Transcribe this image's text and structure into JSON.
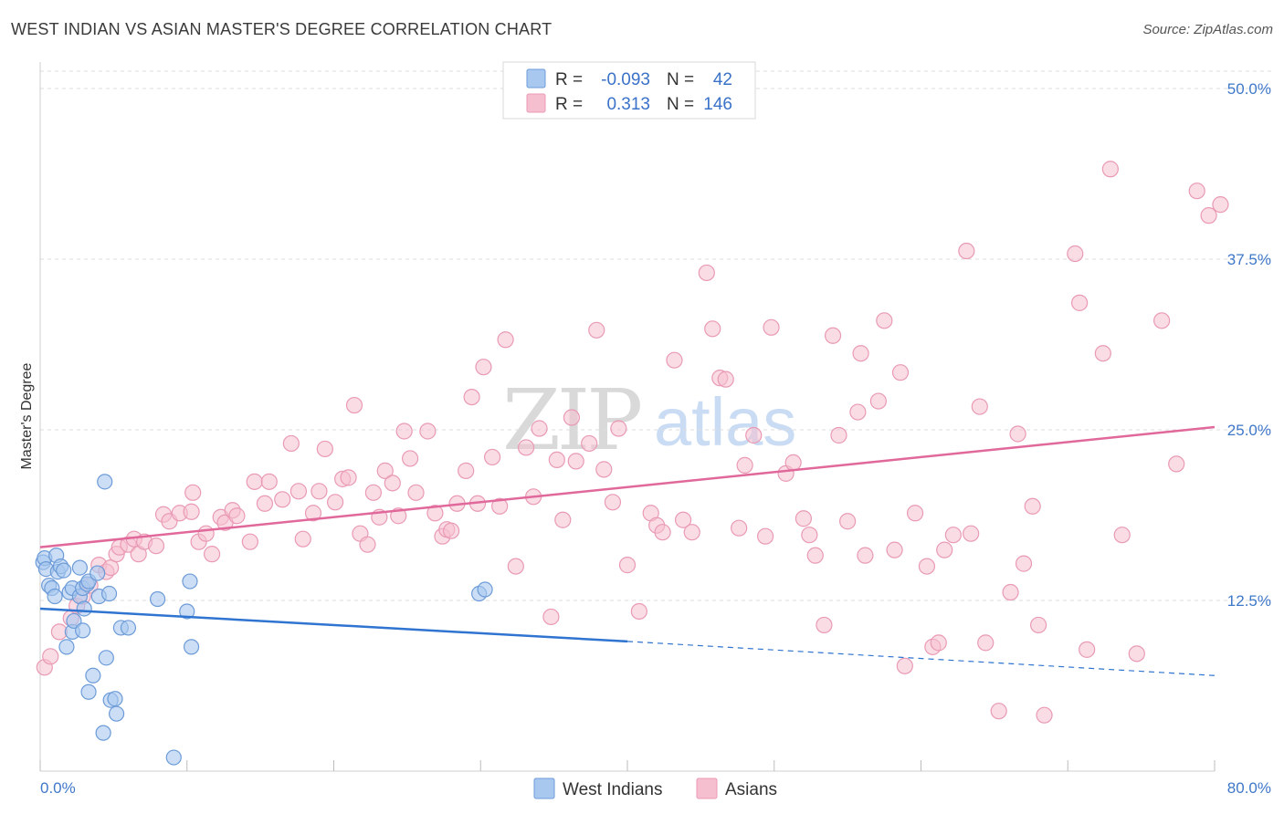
{
  "title": "WEST INDIAN VS ASIAN MASTER'S DEGREE CORRELATION CHART",
  "source": "Source: ZipAtlas.com",
  "watermark": {
    "part1": "ZIP",
    "part2": "atlas"
  },
  "colors": {
    "blue_fill": "#a9c8ef",
    "blue_stroke": "#6c9bd8",
    "blue_line": "#2f74d0",
    "pink_fill": "#f6bfd0",
    "pink_stroke": "#e99ab4",
    "pink_line": "#e0689a",
    "grid": "#dddddd",
    "tick_label": "#3f78c9"
  },
  "legend_top": {
    "rows": [
      {
        "r_label": "R =",
        "r_value": "-0.093",
        "n_label": "N =",
        "n_value": "42"
      },
      {
        "r_label": "R =",
        "r_value": "0.313",
        "n_label": "N =",
        "n_value": "146"
      }
    ]
  },
  "legend_bottom": {
    "items": [
      "West Indians",
      "Asians"
    ]
  },
  "chart_data": {
    "type": "scatter",
    "title": "WEST INDIAN VS ASIAN MASTER'S DEGREE CORRELATION CHART",
    "xlabel": "",
    "ylabel": "Master's Degree",
    "xlim": [
      0,
      80
    ],
    "ylim": [
      0,
      52
    ],
    "x_tick_labels": [
      {
        "value": 0,
        "label": "0.0%"
      },
      {
        "value": 80,
        "label": "80.0%"
      }
    ],
    "y_ticks": [
      {
        "value": 12.5,
        "label": "12.5%"
      },
      {
        "value": 25.0,
        "label": "25.0%"
      },
      {
        "value": 37.5,
        "label": "37.5%"
      },
      {
        "value": 50.0,
        "label": "50.0%"
      }
    ],
    "series": [
      {
        "name": "West Indians",
        "r": -0.093,
        "n": 42,
        "trend": {
          "x0": 0,
          "y0": 11.9,
          "x1": 40,
          "y1": 9.5,
          "dash_to_x": 80,
          "dash_to_y": 7.0
        },
        "points": [
          [
            0.2,
            15.3
          ],
          [
            0.3,
            15.6
          ],
          [
            0.4,
            14.8
          ],
          [
            0.6,
            13.6
          ],
          [
            0.8,
            13.4
          ],
          [
            1.0,
            12.8
          ],
          [
            1.1,
            15.8
          ],
          [
            1.2,
            14.6
          ],
          [
            1.4,
            15.0
          ],
          [
            1.6,
            14.7
          ],
          [
            1.8,
            9.1
          ],
          [
            2.0,
            13.1
          ],
          [
            2.2,
            13.4
          ],
          [
            2.2,
            10.2
          ],
          [
            2.3,
            11.0
          ],
          [
            2.7,
            14.9
          ],
          [
            2.7,
            12.8
          ],
          [
            2.9,
            13.4
          ],
          [
            2.9,
            10.3
          ],
          [
            3.0,
            11.9
          ],
          [
            3.2,
            13.7
          ],
          [
            3.3,
            13.9
          ],
          [
            3.3,
            5.8
          ],
          [
            3.6,
            7.0
          ],
          [
            3.9,
            14.5
          ],
          [
            4.0,
            12.8
          ],
          [
            4.3,
            2.8
          ],
          [
            4.5,
            8.3
          ],
          [
            4.7,
            13.0
          ],
          [
            4.8,
            5.2
          ],
          [
            5.1,
            5.3
          ],
          [
            5.2,
            4.2
          ],
          [
            4.4,
            21.2
          ],
          [
            5.5,
            10.5
          ],
          [
            6.0,
            10.5
          ],
          [
            8.0,
            12.6
          ],
          [
            9.1,
            1.0
          ],
          [
            10.0,
            11.7
          ],
          [
            10.2,
            13.9
          ],
          [
            10.3,
            9.1
          ],
          [
            29.9,
            13.0
          ],
          [
            30.3,
            13.3
          ]
        ]
      },
      {
        "name": "Asians",
        "r": 0.313,
        "n": 146,
        "trend": {
          "x0": 0,
          "y0": 16.4,
          "x1": 80,
          "y1": 25.2
        },
        "points": [
          [
            0.3,
            7.6
          ],
          [
            0.7,
            8.4
          ],
          [
            1.3,
            10.2
          ],
          [
            2.1,
            11.2
          ],
          [
            2.5,
            12.1
          ],
          [
            2.9,
            12.8
          ],
          [
            3.4,
            13.6
          ],
          [
            4.0,
            15.1
          ],
          [
            4.5,
            14.6
          ],
          [
            4.8,
            14.9
          ],
          [
            5.2,
            15.9
          ],
          [
            5.4,
            16.4
          ],
          [
            6.0,
            16.6
          ],
          [
            6.4,
            17.0
          ],
          [
            6.7,
            15.9
          ],
          [
            7.1,
            16.8
          ],
          [
            7.9,
            16.5
          ],
          [
            8.4,
            18.8
          ],
          [
            8.8,
            18.3
          ],
          [
            9.5,
            18.9
          ],
          [
            10.3,
            19.0
          ],
          [
            10.4,
            20.4
          ],
          [
            10.8,
            16.8
          ],
          [
            11.3,
            17.4
          ],
          [
            11.7,
            15.9
          ],
          [
            12.3,
            18.6
          ],
          [
            12.6,
            18.2
          ],
          [
            13.1,
            19.1
          ],
          [
            13.4,
            18.7
          ],
          [
            14.3,
            16.8
          ],
          [
            14.6,
            21.2
          ],
          [
            15.3,
            19.6
          ],
          [
            15.6,
            21.2
          ],
          [
            16.5,
            19.9
          ],
          [
            17.1,
            24.0
          ],
          [
            17.6,
            20.5
          ],
          [
            17.9,
            17.0
          ],
          [
            18.6,
            18.9
          ],
          [
            19.0,
            20.5
          ],
          [
            19.4,
            23.6
          ],
          [
            20.1,
            19.7
          ],
          [
            20.6,
            21.4
          ],
          [
            21.0,
            21.5
          ],
          [
            21.4,
            26.8
          ],
          [
            21.8,
            17.4
          ],
          [
            22.3,
            16.6
          ],
          [
            22.7,
            20.4
          ],
          [
            23.1,
            18.6
          ],
          [
            23.5,
            22.0
          ],
          [
            24.0,
            21.1
          ],
          [
            24.4,
            18.7
          ],
          [
            24.8,
            24.9
          ],
          [
            25.2,
            22.9
          ],
          [
            25.6,
            20.4
          ],
          [
            26.4,
            24.9
          ],
          [
            26.9,
            18.9
          ],
          [
            27.4,
            17.2
          ],
          [
            27.7,
            17.7
          ],
          [
            28.0,
            17.6
          ],
          [
            28.4,
            19.6
          ],
          [
            29.0,
            22.0
          ],
          [
            29.4,
            27.4
          ],
          [
            29.8,
            19.6
          ],
          [
            30.2,
            29.6
          ],
          [
            30.8,
            23.0
          ],
          [
            31.3,
            19.4
          ],
          [
            31.7,
            31.6
          ],
          [
            32.4,
            15.0
          ],
          [
            33.1,
            23.7
          ],
          [
            33.6,
            20.1
          ],
          [
            34.0,
            25.1
          ],
          [
            34.8,
            11.3
          ],
          [
            35.2,
            22.8
          ],
          [
            35.6,
            18.4
          ],
          [
            36.2,
            25.9
          ],
          [
            36.5,
            22.7
          ],
          [
            37.4,
            24.0
          ],
          [
            37.9,
            32.3
          ],
          [
            38.4,
            22.1
          ],
          [
            39.0,
            19.7
          ],
          [
            39.4,
            25.1
          ],
          [
            40.0,
            15.1
          ],
          [
            40.8,
            11.7
          ],
          [
            41.6,
            18.9
          ],
          [
            42.0,
            18.0
          ],
          [
            42.4,
            17.5
          ],
          [
            43.2,
            30.1
          ],
          [
            43.8,
            18.4
          ],
          [
            44.4,
            17.5
          ],
          [
            45.4,
            36.5
          ],
          [
            45.8,
            32.4
          ],
          [
            46.3,
            28.8
          ],
          [
            46.7,
            28.7
          ],
          [
            47.6,
            17.8
          ],
          [
            48.0,
            22.4
          ],
          [
            48.6,
            24.6
          ],
          [
            49.4,
            17.2
          ],
          [
            49.8,
            32.5
          ],
          [
            50.8,
            21.8
          ],
          [
            51.3,
            22.6
          ],
          [
            52.0,
            18.5
          ],
          [
            52.4,
            17.3
          ],
          [
            52.8,
            15.8
          ],
          [
            53.4,
            10.7
          ],
          [
            54.0,
            31.9
          ],
          [
            54.4,
            24.6
          ],
          [
            55.0,
            18.3
          ],
          [
            55.7,
            26.3
          ],
          [
            55.9,
            30.6
          ],
          [
            56.2,
            15.8
          ],
          [
            57.1,
            27.1
          ],
          [
            57.5,
            33.0
          ],
          [
            58.2,
            16.2
          ],
          [
            58.6,
            29.2
          ],
          [
            58.9,
            7.7
          ],
          [
            59.6,
            18.9
          ],
          [
            60.4,
            15.0
          ],
          [
            60.8,
            9.1
          ],
          [
            61.2,
            9.4
          ],
          [
            61.6,
            16.2
          ],
          [
            62.2,
            17.3
          ],
          [
            63.1,
            38.1
          ],
          [
            63.4,
            17.4
          ],
          [
            64.0,
            26.7
          ],
          [
            64.4,
            9.4
          ],
          [
            65.3,
            4.4
          ],
          [
            66.1,
            13.1
          ],
          [
            66.6,
            24.7
          ],
          [
            67.0,
            15.2
          ],
          [
            67.6,
            19.4
          ],
          [
            68.0,
            10.7
          ],
          [
            68.4,
            4.1
          ],
          [
            70.5,
            37.9
          ],
          [
            70.8,
            34.3
          ],
          [
            71.3,
            8.9
          ],
          [
            72.4,
            30.6
          ],
          [
            72.9,
            44.1
          ],
          [
            73.7,
            17.3
          ],
          [
            74.7,
            8.6
          ],
          [
            76.4,
            33.0
          ],
          [
            77.4,
            22.5
          ],
          [
            78.8,
            42.5
          ],
          [
            79.6,
            40.7
          ],
          [
            80.4,
            41.5
          ]
        ]
      }
    ]
  }
}
